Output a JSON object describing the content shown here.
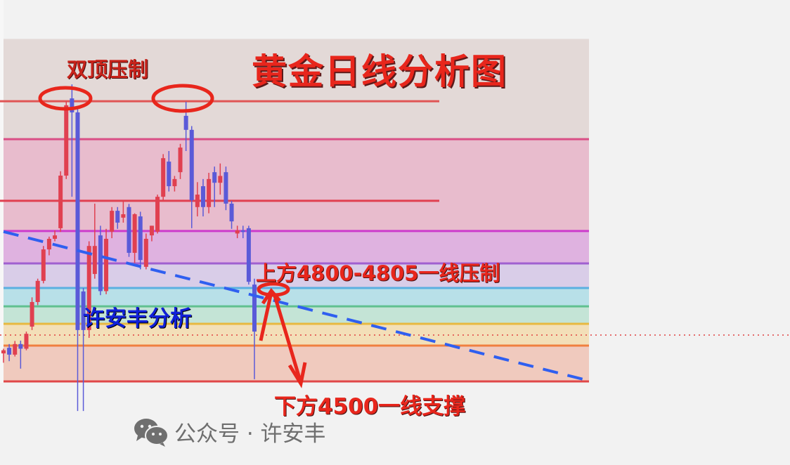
{
  "chart_data": {
    "type": "candlestick",
    "title": "黄金日线分析图",
    "colors": {
      "up": "#e04050",
      "down": "#5a5ad8",
      "trendline": "#2f5ff0",
      "annotation": "#e8261c"
    },
    "levels": [
      {
        "price": 5400,
        "color": "#e05555",
        "partial": true
      },
      {
        "price": 5278,
        "color": "#d94f86"
      },
      {
        "price": 5080,
        "color": "#e04050",
        "partial": true
      },
      {
        "price": 4983,
        "color": "#cc3ccc"
      },
      {
        "price": 4879,
        "color": "#a060d0"
      },
      {
        "price": 4800,
        "color": "#5ab0e0"
      },
      {
        "price": 4741,
        "color": "#60c090"
      },
      {
        "price": 4685,
        "color": "#e8b840"
      },
      {
        "price": 4649,
        "color": "#e04040",
        "dotted": true
      },
      {
        "price": 4615,
        "color": "#f08040"
      },
      {
        "price": 4500,
        "color": "#e04848"
      }
    ],
    "bands": [
      {
        "from": 5278,
        "to": 5600,
        "color": "#e3d9d7"
      },
      {
        "from": 4983,
        "to": 5278,
        "color": "#e8bccd"
      },
      {
        "from": 4879,
        "to": 4983,
        "color": "#dfb2e0"
      },
      {
        "from": 4800,
        "to": 4879,
        "color": "#d9cde8"
      },
      {
        "from": 4741,
        "to": 4800,
        "color": "#b8e0e8"
      },
      {
        "from": 4685,
        "to": 4741,
        "color": "#c4e4d6"
      },
      {
        "from": 4615,
        "to": 4685,
        "color": "#f3dfb8"
      },
      {
        "from": 4500,
        "to": 4615,
        "color": "#f0cabe"
      }
    ],
    "trendline": {
      "start_price": 4981,
      "end_price": 4502,
      "dashed": true
    },
    "candles": [
      [
        4590,
        4605,
        4560,
        4600
      ],
      [
        4608,
        4620,
        4565,
        4586
      ],
      [
        4586,
        4630,
        4580,
        4620
      ],
      [
        4620,
        4631,
        4541,
        4605
      ],
      [
        4605,
        4660,
        4600,
        4653
      ],
      [
        4676,
        4770,
        4665,
        4755
      ],
      [
        4755,
        4830,
        4745,
        4823
      ],
      [
        4823,
        4935,
        4815,
        4924
      ],
      [
        4924,
        4965,
        4905,
        4958
      ],
      [
        4958,
        4985,
        4950,
        4969
      ],
      [
        4992,
        5175,
        4980,
        5161
      ],
      [
        5161,
        5400,
        5150,
        5387
      ],
      [
        5409,
        5454,
        5093,
        5364
      ],
      [
        5364,
        5380,
        4405,
        4665
      ],
      [
        4789,
        4800,
        4405,
        4665
      ],
      [
        4665,
        4950,
        4640,
        4935
      ],
      [
        4845,
        5071,
        4830,
        4935
      ],
      [
        4969,
        5000,
        4777,
        4790
      ],
      [
        4790,
        4990,
        4780,
        4958
      ],
      [
        4981,
        5060,
        4960,
        5048
      ],
      [
        5048,
        5060,
        4990,
        5010
      ],
      [
        5026,
        5080,
        5010,
        5037
      ],
      [
        5060,
        5070,
        4900,
        4913
      ],
      [
        4913,
        5040,
        4880,
        5037
      ],
      [
        5030,
        5045,
        4860,
        4890
      ],
      [
        4868,
        4975,
        4860,
        4958
      ],
      [
        4969,
        5000,
        4950,
        5000
      ],
      [
        4981,
        5100,
        4975,
        5093
      ],
      [
        5093,
        5230,
        5080,
        5217
      ],
      [
        5206,
        5240,
        5110,
        5127
      ],
      [
        5127,
        5160,
        5110,
        5150
      ],
      [
        5172,
        5263,
        5150,
        5251
      ],
      [
        5353,
        5398,
        5240,
        5308
      ],
      [
        5308,
        5320,
        4992,
        5082
      ],
      [
        5060,
        5140,
        5030,
        5100
      ],
      [
        5127,
        5150,
        5030,
        5060
      ],
      [
        5060,
        5170,
        5040,
        5150
      ],
      [
        5172,
        5190,
        5060,
        5138
      ],
      [
        5138,
        5200,
        5100,
        5160
      ],
      [
        5172,
        5190,
        5050,
        5071
      ],
      [
        5071,
        5080,
        4990,
        5014
      ],
      [
        4975,
        5000,
        4960,
        4985
      ],
      [
        4985,
        5000,
        4960,
        4980
      ],
      [
        4992,
        5000,
        4811,
        4820
      ],
      [
        4811,
        4830,
        4507,
        4660
      ]
    ],
    "candle_fields": [
      "open",
      "high",
      "low",
      "close"
    ],
    "annotations": {
      "double_top": "双顶压制",
      "resistance": "上方4800-4805一线压制",
      "support": "下方4500一线支撑",
      "author": "许安丰分析"
    }
  },
  "watermark": {
    "icon": "wechat-icon",
    "text": "公众号 · 许安丰"
  }
}
